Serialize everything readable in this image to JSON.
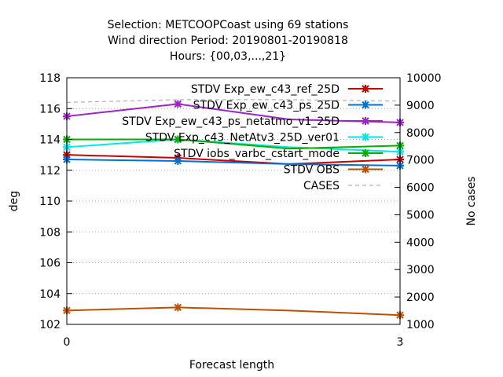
{
  "chart_data": {
    "type": "line",
    "title_lines": [
      "Selection: METCOOPCoast using    69 stations",
      "Wind direction   Period: 20190801-20190818",
      "Hours: {00,03,...,21}"
    ],
    "xlabel": "Forecast length",
    "ylabel": "deg",
    "y2label": "No cases",
    "x": [
      0,
      1,
      2,
      3
    ],
    "xlim": [
      0,
      3
    ],
    "ylim": [
      102,
      118
    ],
    "y2lim": [
      1000,
      10000
    ],
    "xticks": [
      0,
      3
    ],
    "yticks": [
      102,
      104,
      106,
      108,
      110,
      112,
      114,
      116,
      118
    ],
    "y2ticks": [
      1000,
      2000,
      3000,
      4000,
      5000,
      6000,
      7000,
      8000,
      9000,
      10000
    ],
    "grid": true,
    "legend_position": "top-right",
    "series": [
      {
        "name": "STDV Exp_ew_c43_ref_25D",
        "color": "#cc0000",
        "values": [
          113.0,
          112.8,
          112.4,
          112.7
        ]
      },
      {
        "name": "STDV Exp_ew_c43_ps_25D",
        "color": "#0072d6",
        "values": [
          112.7,
          112.6,
          112.4,
          112.3
        ]
      },
      {
        "name": "STDV Exp_ew_c43_ps_netatmo_v1_25D",
        "color": "#a020d0",
        "values": [
          115.5,
          116.3,
          115.3,
          115.1
        ]
      },
      {
        "name": "STDV Exp_c43_NetAtv3_25D_ver01",
        "color": "#00e8e8",
        "values": [
          113.5,
          114.0,
          113.5,
          113.2
        ]
      },
      {
        "name": "STDV iobs_varbc_cstart_mode",
        "color": "#00b000",
        "values": [
          114.0,
          114.0,
          113.4,
          113.6
        ]
      },
      {
        "name": "STDV OBS",
        "color": "#c05000",
        "values": [
          102.9,
          103.1,
          102.9,
          102.6
        ]
      },
      {
        "name": "CASES",
        "color": "#a0a0a0",
        "dashed": true,
        "axis": "y2",
        "values": [
          9100,
          9200,
          9200,
          9150
        ]
      }
    ]
  }
}
